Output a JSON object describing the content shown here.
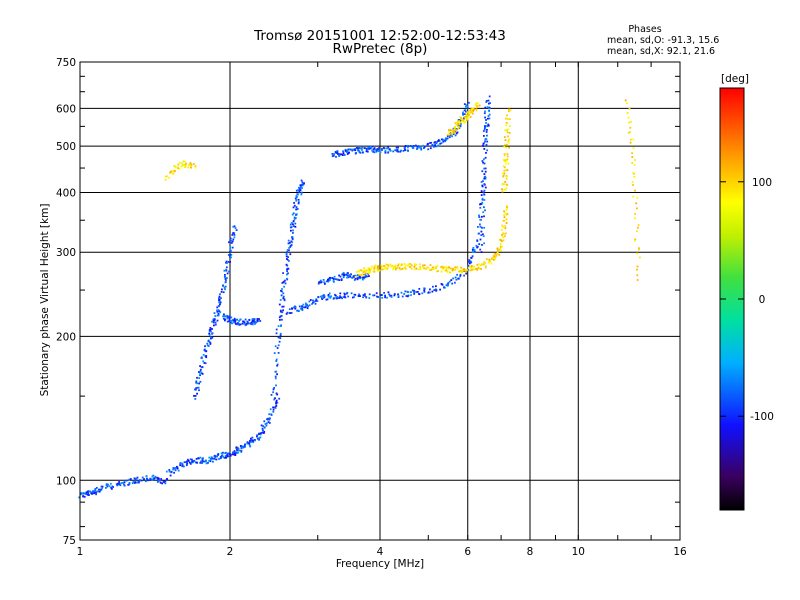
{
  "chart_data": {
    "type": "scatter",
    "title": "Tromsø 20151001 12:52:00-12:53:43",
    "subtitle": "RwPretec (8p)",
    "xlabel": "Frequency [MHz]",
    "ylabel": "Stationary phase Virtual Height [km]",
    "x_scale": "log",
    "y_scale": "log",
    "xlim": [
      1,
      16
    ],
    "ylim": [
      75,
      750
    ],
    "x_ticks": [
      1,
      2,
      4,
      6,
      8,
      10,
      16
    ],
    "x_tick_labels": [
      "1",
      "2",
      "4",
      "6",
      "8",
      "10",
      "16"
    ],
    "y_ticks": [
      75,
      100,
      200,
      300,
      400,
      500,
      600,
      750
    ],
    "y_tick_labels": [
      "75",
      "100",
      "200",
      "300",
      "400",
      "500",
      "600",
      "750"
    ],
    "grid": true,
    "stats": {
      "heading": "Phases",
      "line_o": "mean, sd,O: -91.3, 15.6",
      "line_x": "mean, sd,X:  92.1, 21.6"
    },
    "colorbar": {
      "label": "[deg]",
      "range": [
        -180,
        180
      ],
      "ticks": [
        100,
        0,
        -100
      ],
      "tick_labels": [
        "100",
        "0",
        "-100"
      ],
      "colormap": "rainbow"
    },
    "series": [
      {
        "mode": "O",
        "phase_mean": -91.3,
        "traces": [
          {
            "f": [
              1.0,
              1.05,
              1.1,
              1.2,
              1.3,
              1.4,
              1.5
            ],
            "h": [
              93,
              94,
              96,
              98,
              100,
              101,
              99
            ]
          },
          {
            "f": [
              1.5,
              1.6,
              1.7,
              1.8,
              1.9,
              2.0,
              2.1,
              2.2,
              2.3,
              2.4,
              2.5
            ],
            "h": [
              103,
              108,
              110,
              110,
              112,
              113,
              116,
              120,
              125,
              135,
              150
            ]
          },
          {
            "f": [
              1.7,
              1.75,
              1.8,
              1.85,
              1.9,
              1.95,
              2.0,
              2.05
            ],
            "h": [
              150,
              170,
              190,
              210,
              230,
              260,
              300,
              340
            ]
          },
          {
            "f": [
              1.95,
              2.0,
              2.1,
              2.2,
              2.3
            ],
            "h": [
              220,
              216,
              214,
              214,
              216
            ]
          },
          {
            "f": [
              2.45,
              2.5,
              2.55,
              2.6,
              2.65,
              2.7,
              2.75,
              2.8
            ],
            "h": [
              150,
              200,
              240,
              280,
              320,
              360,
              400,
              420
            ]
          },
          {
            "f": [
              2.6,
              2.8,
              3.0,
              3.2,
              3.5,
              4.0,
              4.5,
              5.0,
              5.5,
              6.0,
              6.3,
              6.5
            ],
            "h": [
              225,
              230,
              240,
              243,
              244,
              244,
              245,
              250,
              258,
              275,
              320,
              450
            ]
          },
          {
            "f": [
              3.2,
              3.4,
              3.6,
              3.8,
              4.0,
              4.3,
              4.6,
              5.0,
              5.3,
              5.6,
              5.8,
              6.0
            ],
            "h": [
              480,
              485,
              490,
              492,
              492,
              490,
              495,
              500,
              510,
              530,
              560,
              610
            ]
          },
          {
            "f": [
              6.4,
              6.45,
              6.5,
              6.55,
              6.6
            ],
            "h": [
              300,
              400,
              500,
              560,
              630
            ]
          },
          {
            "f": [
              3.0,
              3.2,
              3.4,
              3.6,
              3.8
            ],
            "h": [
              260,
              262,
              268,
              265,
              270
            ]
          }
        ]
      },
      {
        "mode": "X",
        "phase_mean": 92.1,
        "traces": [
          {
            "f": [
              3.6,
              3.8,
              4.0,
              4.3,
              4.6,
              5.0,
              5.4,
              5.8,
              6.2,
              6.6,
              6.9,
              7.1,
              7.2
            ],
            "h": [
              270,
              275,
              278,
              280,
              280,
              278,
              276,
              275,
              278,
              285,
              300,
              330,
              380
            ]
          },
          {
            "f": [
              7.1,
              7.15,
              7.2,
              7.25
            ],
            "h": [
              400,
              450,
              520,
              600
            ]
          },
          {
            "f": [
              5.5,
              5.7,
              5.9,
              6.1,
              6.3
            ],
            "h": [
              530,
              550,
              570,
              590,
              610
            ]
          },
          {
            "f": [
              1.5,
              1.6,
              1.7
            ],
            "h": [
              430,
              460,
              455
            ]
          },
          {
            "f": [
              12.5,
              13.0,
              13.2
            ],
            "h": [
              620,
              420,
              260
            ]
          }
        ]
      }
    ]
  }
}
